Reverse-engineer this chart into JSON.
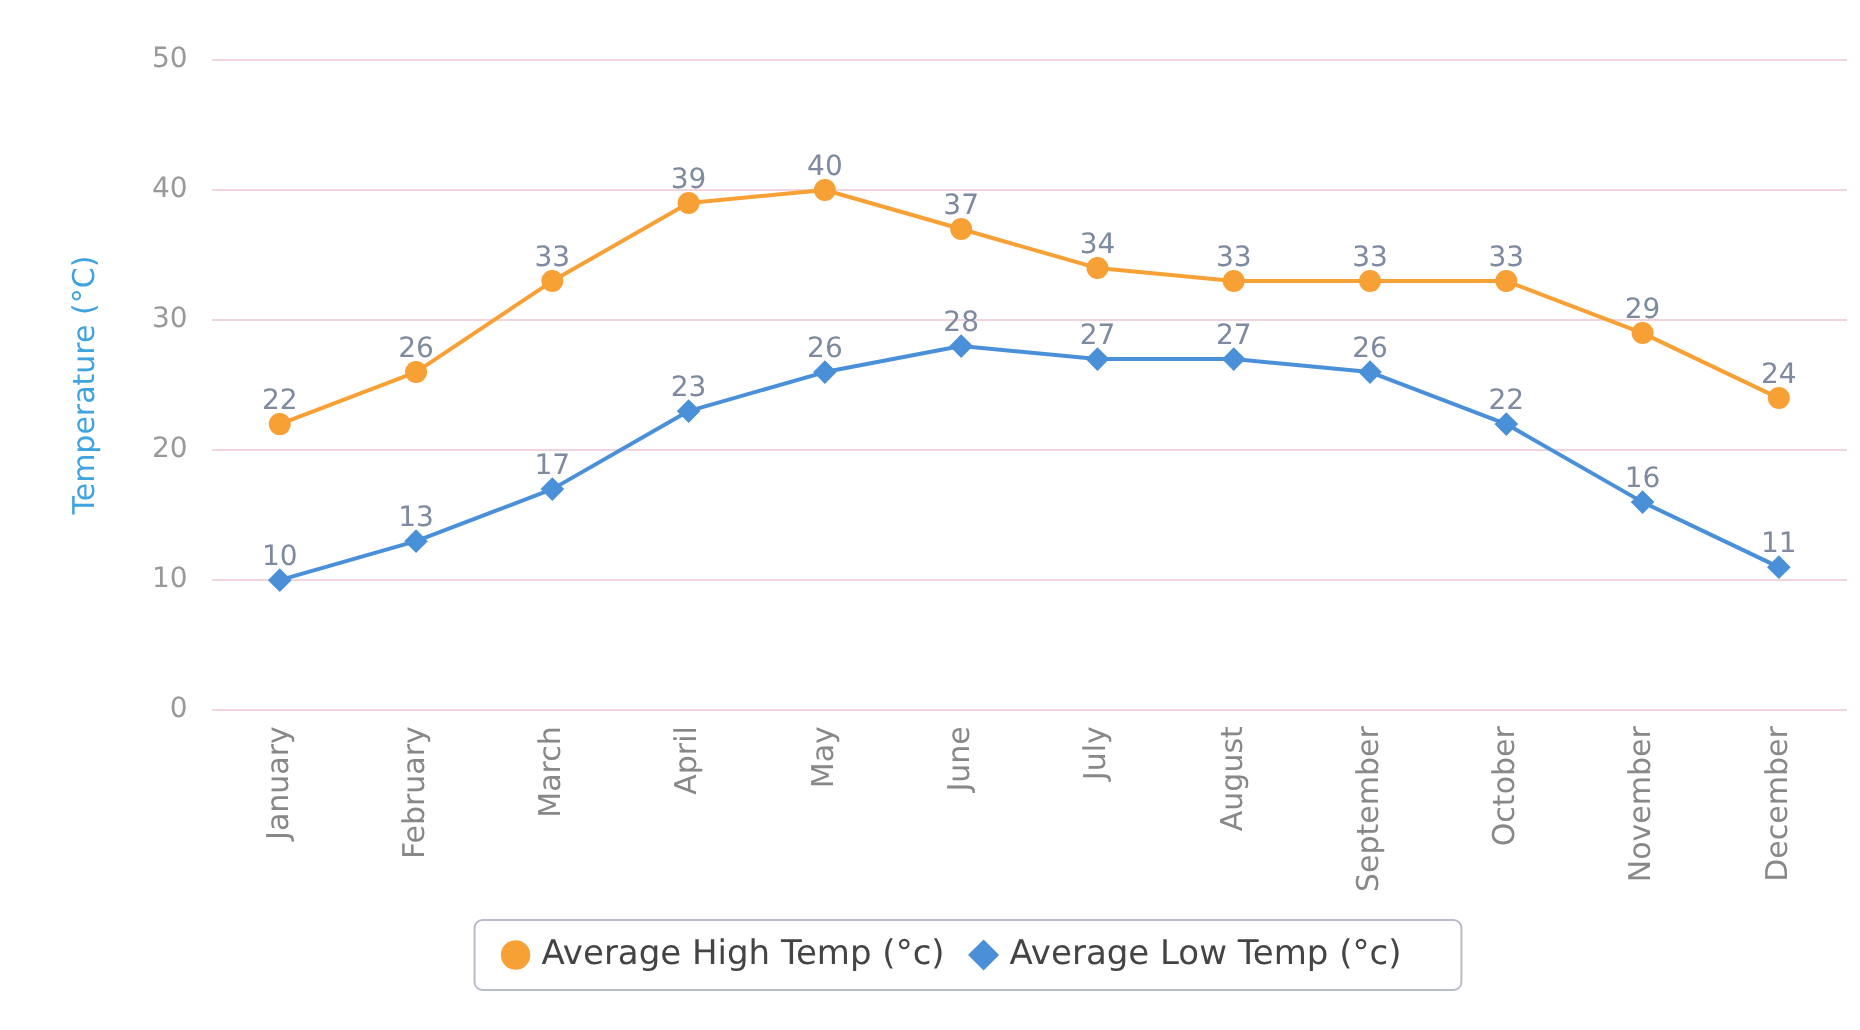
{
  "chart_data": {
    "type": "line",
    "ylabel": "Temperature (°C)",
    "categories": [
      "January",
      "February",
      "March",
      "April",
      "May",
      "June",
      "July",
      "August",
      "September",
      "October",
      "November",
      "December"
    ],
    "series": [
      {
        "name": "Average High Temp (°c)",
        "color": "#f7a035",
        "marker": "circle",
        "values": [
          22,
          26,
          33,
          39,
          40,
          37,
          34,
          33,
          33,
          33,
          29,
          24
        ]
      },
      {
        "name": "Average Low Temp (°c)",
        "color": "#4a90d9",
        "marker": "diamond",
        "values": [
          10,
          13,
          17,
          23,
          26,
          28,
          27,
          27,
          26,
          22,
          16,
          11
        ]
      }
    ],
    "ylim": [
      0,
      50
    ],
    "yticks": [
      0,
      10,
      20,
      30,
      40,
      50
    ],
    "grid": "y",
    "legend": "bottom",
    "data_labels": true
  }
}
